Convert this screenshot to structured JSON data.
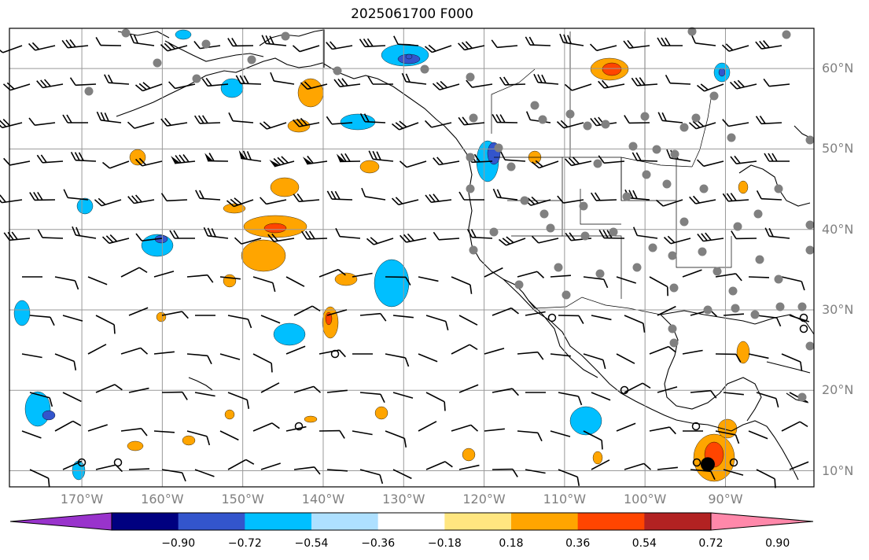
{
  "title": "2025061700 F000",
  "map": {
    "lat_labels": [
      {
        "text": "60°N",
        "lat": 60
      },
      {
        "text": "50°N",
        "lat": 50
      },
      {
        "text": "40°N",
        "lat": 40
      },
      {
        "text": "30°N",
        "lat": 30
      },
      {
        "text": "20°N",
        "lat": 20
      },
      {
        "text": "10°N",
        "lat": 10
      }
    ],
    "lon_labels": [
      {
        "text": "170°W",
        "lon": -170
      },
      {
        "text": "160°W",
        "lon": -160
      },
      {
        "text": "150°W",
        "lon": -150
      },
      {
        "text": "140°W",
        "lon": -140
      },
      {
        "text": "130°W",
        "lon": -130
      },
      {
        "text": "120°W",
        "lon": -120
      },
      {
        "text": "110°W",
        "lon": -110
      },
      {
        "text": "100°W",
        "lon": -100
      },
      {
        "text": "90°W",
        "lon": -90
      }
    ],
    "extent": {
      "lon_min": -179,
      "lon_max": -79,
      "lat_min": 8,
      "lat_max": 65
    },
    "gridlines": true,
    "storm_center": {
      "lon": -92.2,
      "lat": 10.8
    }
  },
  "colorbar": {
    "tick_labels": [
      "−0.90",
      "−0.72",
      "−0.54",
      "−0.36",
      "−0.18",
      "0.18",
      "0.36",
      "0.54",
      "0.72",
      "0.90"
    ],
    "colors": [
      "#9933cc",
      "#000080",
      "#3355cc",
      "#00bfff",
      "#aee0ff",
      "#ffffff",
      "#ffe680",
      "#ffa500",
      "#ff4500",
      "#b22222",
      "#ff88aa"
    ]
  }
}
